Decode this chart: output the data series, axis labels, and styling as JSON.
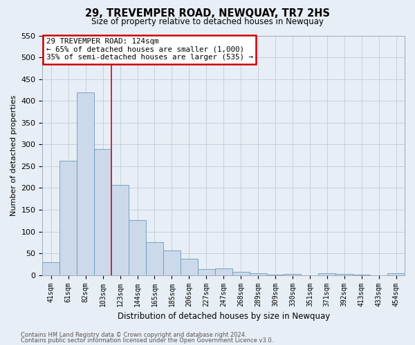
{
  "title": "29, TREVEMPER ROAD, NEWQUAY, TR7 2HS",
  "subtitle": "Size of property relative to detached houses in Newquay",
  "xlabel": "Distribution of detached houses by size in Newquay",
  "ylabel": "Number of detached properties",
  "bar_labels": [
    "41sqm",
    "61sqm",
    "82sqm",
    "103sqm",
    "123sqm",
    "144sqm",
    "165sqm",
    "185sqm",
    "206sqm",
    "227sqm",
    "247sqm",
    "268sqm",
    "289sqm",
    "309sqm",
    "330sqm",
    "351sqm",
    "371sqm",
    "392sqm",
    "413sqm",
    "433sqm",
    "454sqm"
  ],
  "bar_values": [
    30,
    262,
    420,
    289,
    207,
    126,
    75,
    57,
    37,
    14,
    15,
    7,
    5,
    1,
    2,
    0,
    4,
    3,
    1,
    0,
    5
  ],
  "bar_color": "#ccd9ea",
  "bar_edge_color": "#6699bb",
  "property_line_x": 3.5,
  "annotation_title": "29 TREVEMPER ROAD: 124sqm",
  "annotation_line1": "← 65% of detached houses are smaller (1,000)",
  "annotation_line2": "35% of semi-detached houses are larger (535) →",
  "annotation_box_facecolor": "#ffffff",
  "annotation_box_edgecolor": "#cc0000",
  "ylim": [
    0,
    550
  ],
  "yticks": [
    0,
    50,
    100,
    150,
    200,
    250,
    300,
    350,
    400,
    450,
    500,
    550
  ],
  "footer_line1": "Contains HM Land Registry data © Crown copyright and database right 2024.",
  "footer_line2": "Contains public sector information licensed under the Open Government Licence v3.0.",
  "fig_facecolor": "#e8eef5",
  "axes_facecolor": "#e8eef5",
  "grid_color": "#c0ccd8"
}
